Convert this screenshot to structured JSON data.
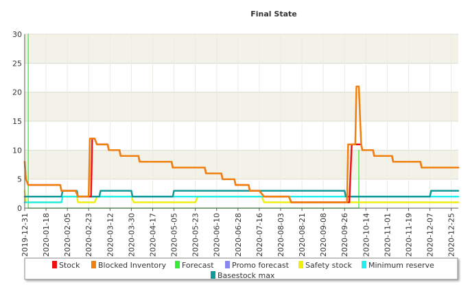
{
  "chart_data": {
    "type": "line",
    "title": "Final State",
    "xlabel": "",
    "ylabel": "",
    "ylim": [
      0,
      30
    ],
    "yticks": [
      0,
      5,
      10,
      15,
      20,
      25,
      30
    ],
    "grid": true,
    "legend_position": "bottom",
    "x_tick_labels": [
      "2019-12-31",
      "2020-01-18",
      "2020-02-05",
      "2020-02-23",
      "2020-03-12",
      "2020-03-30",
      "2020-04-17",
      "2020-05-05",
      "2020-05-23",
      "2020-06-10",
      "2020-06-28",
      "2020-07-16",
      "2020-08-03",
      "2020-08-21",
      "2020-09-08",
      "2020-09-26",
      "2020-10-14",
      "2020-11-01",
      "2020-11-19",
      "2020-12-07",
      "2020-12-25"
    ],
    "x_range": [
      "2019-12-31",
      "2020-12-31"
    ],
    "series": [
      {
        "name": "Stock",
        "color": "#ee1111",
        "points": [
          [
            "2019-12-31",
            8
          ],
          [
            "2020-01-01",
            5
          ],
          [
            "2020-01-03",
            4
          ],
          [
            "2020-01-30",
            4
          ],
          [
            "2020-01-31",
            3
          ],
          [
            "2020-02-05",
            3
          ],
          [
            "2020-02-06",
            3
          ],
          [
            "2020-02-12",
            3
          ],
          [
            "2020-02-14",
            2
          ],
          [
            "2020-02-25",
            2
          ],
          [
            "2020-02-26",
            12
          ],
          [
            "2020-02-27",
            12
          ],
          [
            "2020-02-28",
            12
          ],
          [
            "2020-03-01",
            11
          ],
          [
            "2020-03-10",
            11
          ],
          [
            "2020-03-11",
            10
          ],
          [
            "2020-03-20",
            10
          ],
          [
            "2020-03-21",
            9
          ],
          [
            "2020-04-05",
            9
          ],
          [
            "2020-04-06",
            8
          ],
          [
            "2020-05-03",
            8
          ],
          [
            "2020-05-04",
            7
          ],
          [
            "2020-05-31",
            7
          ],
          [
            "2020-06-01",
            6
          ],
          [
            "2020-06-14",
            6
          ],
          [
            "2020-06-15",
            5
          ],
          [
            "2020-06-25",
            5
          ],
          [
            "2020-06-26",
            4
          ],
          [
            "2020-07-07",
            4
          ],
          [
            "2020-07-08",
            3
          ],
          [
            "2020-07-16",
            3
          ],
          [
            "2020-07-20",
            2
          ],
          [
            "2020-08-10",
            2
          ],
          [
            "2020-08-12",
            1
          ],
          [
            "2020-09-30",
            1
          ],
          [
            "2020-10-02",
            11
          ],
          [
            "2020-10-05",
            11
          ],
          [
            "2020-10-06",
            11
          ],
          [
            "2020-10-10",
            11
          ],
          [
            "2020-10-11",
            10
          ],
          [
            "2020-10-20",
            10
          ],
          [
            "2020-10-21",
            9
          ],
          [
            "2020-11-05",
            9
          ],
          [
            "2020-11-06",
            8
          ],
          [
            "2020-11-29",
            8
          ],
          [
            "2020-11-30",
            7
          ],
          [
            "2020-12-31",
            7
          ]
        ]
      },
      {
        "name": "Blocked Inventory",
        "color": "#f08010",
        "points": [
          [
            "2019-12-31",
            8
          ],
          [
            "2020-01-01",
            5
          ],
          [
            "2020-01-03",
            4
          ],
          [
            "2020-01-30",
            4
          ],
          [
            "2020-01-31",
            3
          ],
          [
            "2020-02-05",
            3
          ],
          [
            "2020-02-06",
            3
          ],
          [
            "2020-02-12",
            3
          ],
          [
            "2020-02-14",
            2
          ],
          [
            "2020-02-23",
            2
          ],
          [
            "2020-02-24",
            12
          ],
          [
            "2020-02-27",
            12
          ],
          [
            "2020-02-28",
            12
          ],
          [
            "2020-03-01",
            11
          ],
          [
            "2020-03-10",
            11
          ],
          [
            "2020-03-11",
            10
          ],
          [
            "2020-03-20",
            10
          ],
          [
            "2020-03-21",
            9
          ],
          [
            "2020-04-05",
            9
          ],
          [
            "2020-04-06",
            8
          ],
          [
            "2020-05-03",
            8
          ],
          [
            "2020-05-04",
            7
          ],
          [
            "2020-05-31",
            7
          ],
          [
            "2020-06-01",
            6
          ],
          [
            "2020-06-14",
            6
          ],
          [
            "2020-06-15",
            5
          ],
          [
            "2020-06-25",
            5
          ],
          [
            "2020-06-26",
            4
          ],
          [
            "2020-07-07",
            4
          ],
          [
            "2020-07-08",
            3
          ],
          [
            "2020-07-16",
            3
          ],
          [
            "2020-07-20",
            2
          ],
          [
            "2020-08-10",
            2
          ],
          [
            "2020-08-12",
            1
          ],
          [
            "2020-09-28",
            1
          ],
          [
            "2020-09-29",
            11
          ],
          [
            "2020-10-05",
            11
          ],
          [
            "2020-10-06",
            21
          ],
          [
            "2020-10-08",
            21
          ],
          [
            "2020-10-10",
            11
          ],
          [
            "2020-10-11",
            10
          ],
          [
            "2020-10-20",
            10
          ],
          [
            "2020-10-21",
            9
          ],
          [
            "2020-11-05",
            9
          ],
          [
            "2020-11-06",
            8
          ],
          [
            "2020-11-29",
            8
          ],
          [
            "2020-11-30",
            7
          ],
          [
            "2020-12-31",
            7
          ]
        ]
      },
      {
        "name": "Forecast",
        "color": "#33ee33",
        "points": [
          [
            "2020-01-03",
            0
          ],
          [
            "2020-01-03",
            30
          ],
          [
            "2020-01-03",
            0
          ],
          [
            "2020-10-08",
            0
          ],
          [
            "2020-10-08",
            10
          ],
          [
            "2020-10-08",
            0
          ]
        ]
      },
      {
        "name": "Promo forecast",
        "color": "#8888ee",
        "points": []
      },
      {
        "name": "Safety stock",
        "color": "#eeee11",
        "points": [
          [
            "2019-12-31",
            3
          ],
          [
            "2020-01-01",
            1
          ],
          [
            "2020-01-31",
            1
          ],
          [
            "2020-02-01",
            2
          ],
          [
            "2020-02-13",
            2
          ],
          [
            "2020-02-14",
            1
          ],
          [
            "2020-02-28",
            1
          ],
          [
            "2020-03-01",
            2
          ],
          [
            "2020-03-30",
            2
          ],
          [
            "2020-04-01",
            1
          ],
          [
            "2020-05-23",
            1
          ],
          [
            "2020-05-25",
            2
          ],
          [
            "2020-07-18",
            2
          ],
          [
            "2020-07-20",
            1
          ],
          [
            "2020-09-10",
            1
          ],
          [
            "2020-09-12",
            1
          ],
          [
            "2020-10-05",
            1
          ],
          [
            "2020-12-31",
            1
          ]
        ]
      },
      {
        "name": "Minimum reserve",
        "color": "#22eeee",
        "points": [
          [
            "2019-12-31",
            1
          ],
          [
            "2020-01-31",
            1
          ],
          [
            "2020-02-01",
            2
          ],
          [
            "2020-05-05",
            2
          ],
          [
            "2020-05-06",
            2
          ],
          [
            "2020-06-28",
            2
          ],
          [
            "2020-06-29",
            2
          ],
          [
            "2020-09-08",
            2
          ],
          [
            "2020-09-10",
            2
          ],
          [
            "2020-12-31",
            2
          ]
        ]
      },
      {
        "name": "Basestock max",
        "color": "#119999",
        "points": [
          [
            "2019-12-31",
            2
          ],
          [
            "2020-01-31",
            2
          ],
          [
            "2020-02-01",
            3
          ],
          [
            "2020-02-13",
            3
          ],
          [
            "2020-02-14",
            2
          ],
          [
            "2020-03-03",
            2
          ],
          [
            "2020-03-04",
            3
          ],
          [
            "2020-03-30",
            3
          ],
          [
            "2020-03-31",
            2
          ],
          [
            "2020-05-04",
            2
          ],
          [
            "2020-05-05",
            3
          ],
          [
            "2020-09-26",
            3
          ],
          [
            "2020-09-27",
            2
          ],
          [
            "2020-12-07",
            2
          ],
          [
            "2020-12-08",
            3
          ],
          [
            "2020-12-31",
            3
          ]
        ]
      }
    ]
  }
}
